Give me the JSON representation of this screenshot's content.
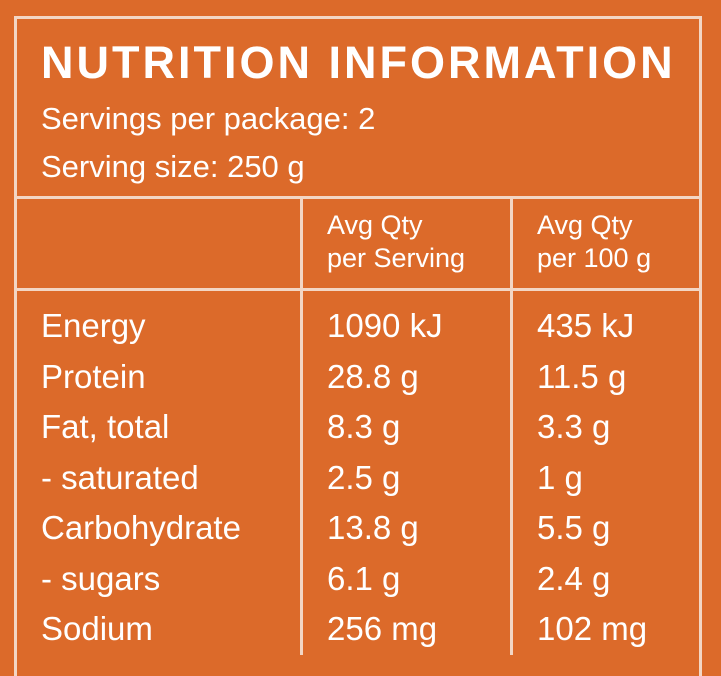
{
  "panel": {
    "title": "NUTRITION INFORMATION",
    "servings_per_package": "Servings per package: 2",
    "serving_size": "Serving size: 250 g"
  },
  "columns": {
    "per_serving": [
      "Avg Qty",
      "per Serving"
    ],
    "per_100g": [
      "Avg Qty",
      "per 100 g"
    ]
  },
  "rows": [
    {
      "name": "Energy",
      "per_serving": "1090 kJ",
      "per_100g": "435 kJ"
    },
    {
      "name": "Protein",
      "per_serving": "28.8 g",
      "per_100g": "11.5 g"
    },
    {
      "name": "Fat, total",
      "per_serving": "8.3 g",
      "per_100g": "3.3 g"
    },
    {
      "name": "- saturated",
      "per_serving": "2.5 g",
      "per_100g": "1 g"
    },
    {
      "name": "Carbohydrate",
      "per_serving": "13.8 g",
      "per_100g": "5.5 g"
    },
    {
      "name": "- sugars",
      "per_serving": "6.1 g",
      "per_100g": "2.4 g"
    },
    {
      "name": "Sodium",
      "per_serving": "256 mg",
      "per_100g": "102 mg"
    }
  ],
  "colors": {
    "background": "#dc6a2a",
    "text": "#ffffff",
    "rule": "#f3d6c4"
  }
}
